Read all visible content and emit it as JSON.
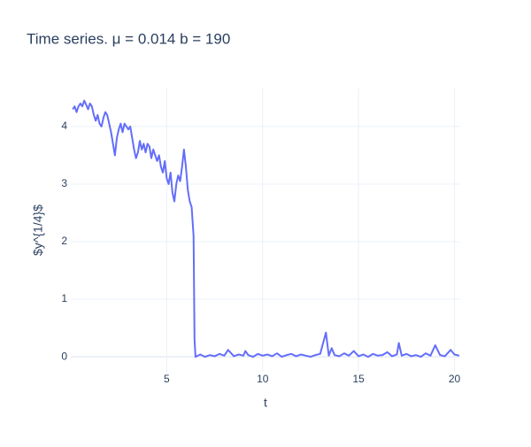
{
  "chart_data": {
    "type": "line",
    "title": "Time series. μ = 0.014 b = 190",
    "x_label": "t",
    "y_label": "$y^{1/4}$",
    "xlim": [
      0,
      20.3
    ],
    "ylim": [
      -0.26,
      4.66
    ],
    "xticks": [
      5,
      10,
      15,
      20
    ],
    "yticks": [
      0,
      1,
      2,
      3,
      4
    ],
    "grid": true,
    "series": [
      {
        "color": "#636efa",
        "x": [
          0.1,
          0.2,
          0.3,
          0.4,
          0.5,
          0.6,
          0.7,
          0.8,
          0.9,
          1.0,
          1.1,
          1.2,
          1.3,
          1.4,
          1.5,
          1.6,
          1.7,
          1.8,
          1.9,
          2.0,
          2.1,
          2.2,
          2.3,
          2.4,
          2.5,
          2.6,
          2.7,
          2.8,
          2.9,
          3.0,
          3.1,
          3.2,
          3.3,
          3.4,
          3.5,
          3.6,
          3.7,
          3.8,
          3.9,
          4.0,
          4.1,
          4.2,
          4.3,
          4.4,
          4.5,
          4.6,
          4.7,
          4.8,
          4.9,
          5.0,
          5.1,
          5.2,
          5.3,
          5.4,
          5.5,
          5.6,
          5.7,
          5.8,
          5.9,
          6.0,
          6.1,
          6.2,
          6.3,
          6.4,
          6.45,
          6.5,
          6.75,
          7.0,
          7.25,
          7.5,
          7.75,
          8.0,
          8.2,
          8.5,
          8.75,
          9.0,
          9.1,
          9.25,
          9.5,
          9.75,
          10.0,
          10.25,
          10.5,
          10.75,
          11.0,
          11.25,
          11.5,
          11.75,
          12.0,
          12.25,
          12.5,
          12.75,
          13.0,
          13.3,
          13.45,
          13.6,
          13.75,
          14.0,
          14.25,
          14.5,
          14.75,
          15.0,
          15.25,
          15.5,
          15.75,
          16.0,
          16.25,
          16.5,
          16.75,
          17.0,
          17.1,
          17.25,
          17.5,
          17.75,
          18.0,
          18.25,
          18.5,
          18.75,
          19.0,
          19.25,
          19.5,
          19.8,
          20.0,
          20.25
        ],
        "values": [
          4.3,
          4.35,
          4.25,
          4.35,
          4.4,
          4.35,
          4.45,
          4.38,
          4.3,
          4.4,
          4.35,
          4.2,
          4.1,
          4.2,
          4.05,
          4.0,
          4.15,
          4.25,
          4.2,
          4.05,
          3.9,
          3.7,
          3.5,
          3.8,
          3.95,
          4.05,
          3.9,
          4.05,
          4.0,
          3.95,
          4.0,
          3.8,
          3.6,
          3.45,
          3.55,
          3.75,
          3.6,
          3.7,
          3.55,
          3.7,
          3.65,
          3.45,
          3.6,
          3.5,
          3.4,
          3.5,
          3.3,
          3.2,
          3.4,
          3.1,
          3.0,
          3.2,
          2.85,
          2.7,
          3.0,
          3.15,
          3.05,
          3.3,
          3.6,
          3.3,
          2.9,
          2.7,
          2.6,
          2.1,
          0.3,
          0.0,
          0.04,
          0.0,
          0.03,
          0.01,
          0.05,
          0.02,
          0.12,
          0.01,
          0.04,
          0.02,
          0.1,
          0.03,
          0.0,
          0.05,
          0.02,
          0.04,
          0.01,
          0.06,
          0.0,
          0.03,
          0.05,
          0.01,
          0.04,
          0.02,
          0.0,
          0.03,
          0.05,
          0.42,
          0.02,
          0.15,
          0.03,
          0.01,
          0.06,
          0.02,
          0.1,
          0.01,
          0.04,
          0.0,
          0.05,
          0.02,
          0.03,
          0.08,
          0.01,
          0.04,
          0.24,
          0.02,
          0.05,
          0.01,
          0.03,
          0.0,
          0.06,
          0.02,
          0.2,
          0.03,
          0.01,
          0.12,
          0.04,
          0.02
        ]
      }
    ]
  }
}
